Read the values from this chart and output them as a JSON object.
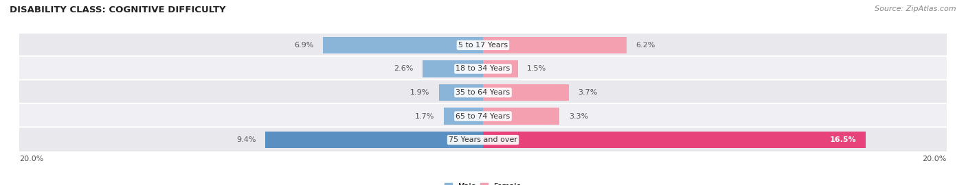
{
  "title": "DISABILITY CLASS: COGNITIVE DIFFICULTY",
  "source_text": "Source: ZipAtlas.com",
  "categories": [
    "5 to 17 Years",
    "18 to 34 Years",
    "35 to 64 Years",
    "65 to 74 Years",
    "75 Years and over"
  ],
  "male_values": [
    6.9,
    2.6,
    1.9,
    1.7,
    9.4
  ],
  "female_values": [
    6.2,
    1.5,
    3.7,
    3.3,
    16.5
  ],
  "max_value": 20.0,
  "male_color_normal": "#8ab4d8",
  "female_color_normal": "#f4a0b0",
  "male_color_highlight": "#5a8fc2",
  "female_color_highlight": "#e8427a",
  "row_bg_color": "#e8e8ed",
  "row_bg_color_alt": "#f0f0f4",
  "title_fontsize": 9.5,
  "value_fontsize": 8,
  "cat_fontsize": 8,
  "source_fontsize": 8,
  "legend_fontsize": 8,
  "x_axis_label": "20.0%"
}
